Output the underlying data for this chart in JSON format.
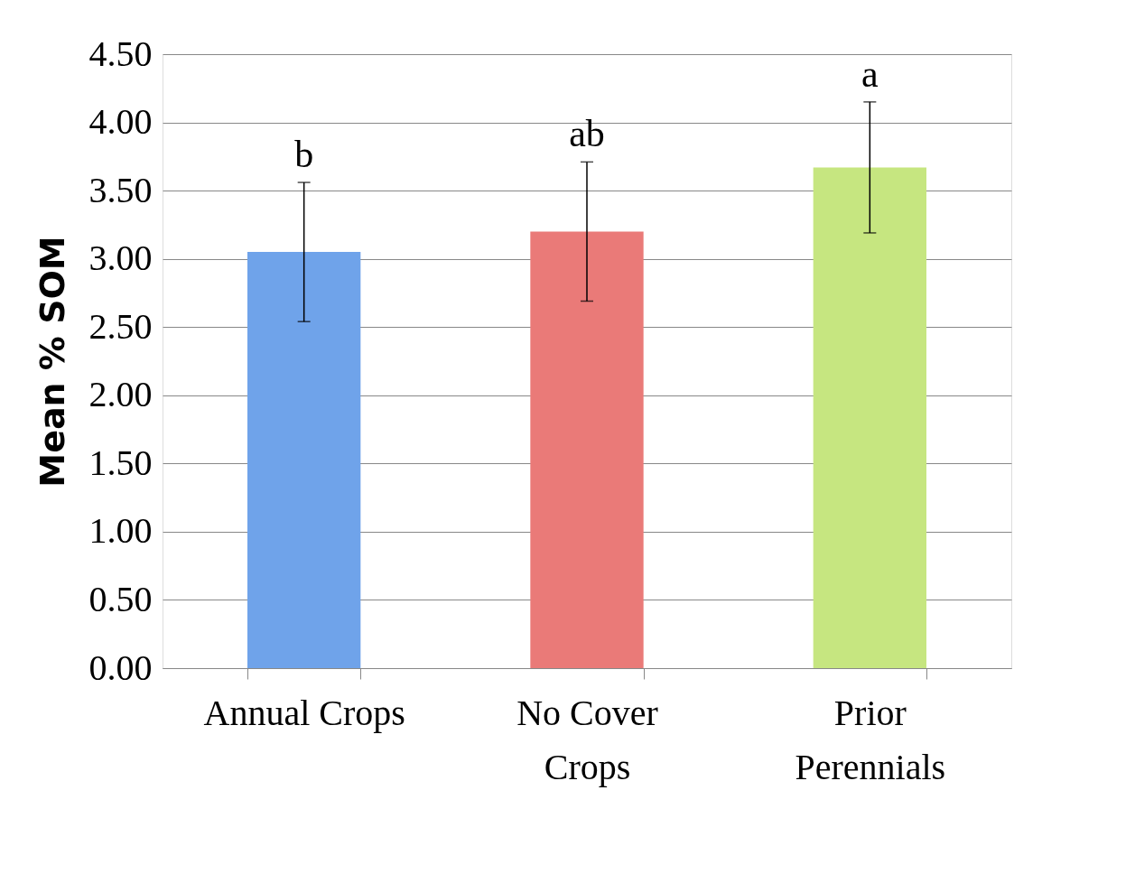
{
  "chart_data": {
    "type": "bar",
    "ylabel": "Mean % SOM",
    "categories": [
      "Annual Crops",
      "No Cover\nCrops",
      "Prior\nPerennials"
    ],
    "values": [
      3.05,
      3.2,
      3.67
    ],
    "errors": [
      0.51,
      0.51,
      0.48
    ],
    "colors": [
      "#6fa3ea",
      "#ea7a78",
      "#c6e680"
    ],
    "ylim": [
      0,
      4.5
    ],
    "yticks": [
      {
        "value": 0,
        "label": "0.00"
      },
      {
        "value": 0.5,
        "label": "0.50"
      },
      {
        "value": 1,
        "label": "1.00"
      },
      {
        "value": 1.5,
        "label": "1.50"
      },
      {
        "value": 2,
        "label": "2.00"
      },
      {
        "value": 2.5,
        "label": "2.50"
      },
      {
        "value": 3,
        "label": "3.00"
      },
      {
        "value": 3.5,
        "label": "3.50"
      },
      {
        "value": 4,
        "label": "4.00"
      },
      {
        "value": 4.5,
        "label": "4.50"
      }
    ],
    "grid": "y",
    "annotations": [
      "b",
      "ab",
      "a"
    ]
  }
}
